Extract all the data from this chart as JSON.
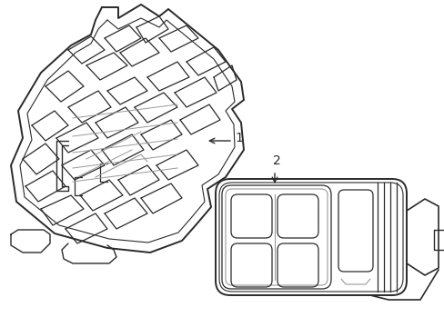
{
  "bg_color": "#ffffff",
  "line_color": "#2a2a2a",
  "gray_color": "#999999",
  "label1": "1",
  "label2": "2",
  "figsize": [
    4.89,
    3.6
  ],
  "dpi": 100
}
